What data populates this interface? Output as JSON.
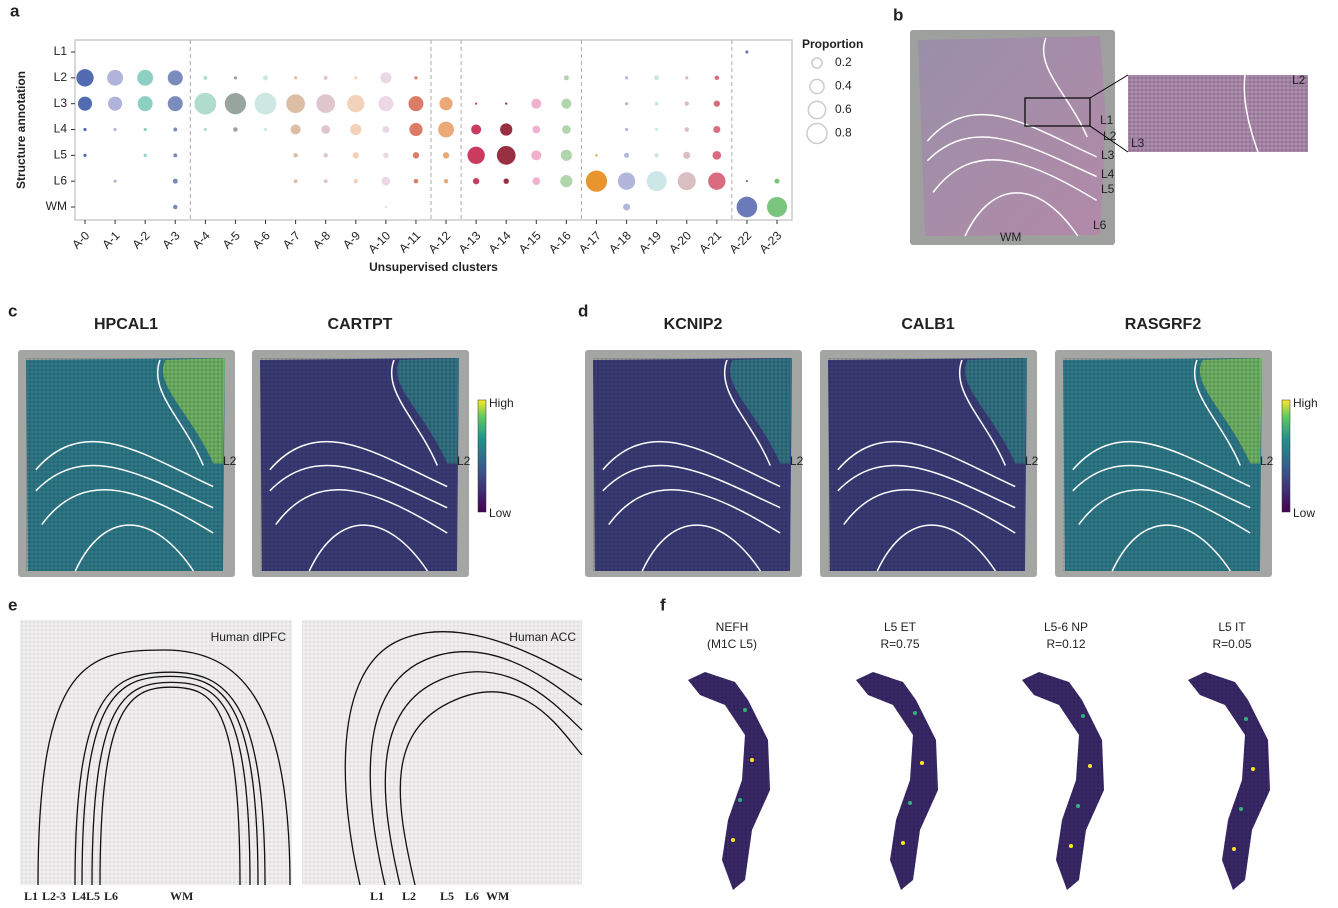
{
  "chart_data": {
    "type": "bubble",
    "x_label": "Unsupervised clusters",
    "y_label": "Structure annotation",
    "y_categories": [
      "L1",
      "L2",
      "L3",
      "L4",
      "L5",
      "L6",
      "WM"
    ],
    "dividers_after": [
      "A-3",
      "A-11",
      "A-12",
      "A-16",
      "A-21"
    ],
    "size_legend": {
      "title": "Proportion",
      "values": [
        0.2,
        0.4,
        0.6,
        0.8
      ]
    },
    "series": [
      {
        "name": "A-0",
        "color": "#3f5ba9",
        "values": [
          null,
          0.6,
          0.4,
          0.02,
          0.02,
          null,
          null
        ]
      },
      {
        "name": "A-1",
        "color": "#a7acd6",
        "values": [
          null,
          0.5,
          0.4,
          0.02,
          null,
          0.02,
          null
        ]
      },
      {
        "name": "A-2",
        "color": "#7fcbbd",
        "values": [
          null,
          0.5,
          0.45,
          0.02,
          0.02,
          null,
          null
        ]
      },
      {
        "name": "A-3",
        "color": "#6c7fb4",
        "values": [
          null,
          0.45,
          0.45,
          0.03,
          0.03,
          0.05,
          0.04
        ]
      },
      {
        "name": "A-4",
        "color": "#a7d8c8",
        "values": [
          null,
          0.03,
          0.95,
          0.02,
          null,
          null,
          null
        ]
      },
      {
        "name": "A-5",
        "color": "#8d9a93",
        "values": [
          null,
          0.02,
          0.9,
          0.04,
          null,
          null,
          null
        ]
      },
      {
        "name": "A-6",
        "color": "#c9e4e0",
        "values": [
          null,
          0.05,
          0.95,
          0.02,
          null,
          null,
          null
        ]
      },
      {
        "name": "A-7",
        "color": "#d8b79a",
        "values": [
          null,
          0.02,
          0.7,
          0.2,
          0.04,
          0.03,
          null
        ]
      },
      {
        "name": "A-8",
        "color": "#dcc0c8",
        "values": [
          null,
          0.03,
          0.7,
          0.15,
          0.04,
          0.03,
          null
        ]
      },
      {
        "name": "A-9",
        "color": "#f1cdb4",
        "values": [
          null,
          0.02,
          0.6,
          0.25,
          0.08,
          0.04,
          null
        ]
      },
      {
        "name": "A-10",
        "color": "#e9d3e2",
        "values": [
          null,
          0.25,
          0.45,
          0.1,
          0.06,
          0.15,
          0.01
        ]
      },
      {
        "name": "A-11",
        "color": "#d96e55",
        "values": [
          null,
          0.02,
          0.45,
          0.35,
          0.08,
          0.04,
          null
        ]
      },
      {
        "name": "A-12",
        "color": "#e8a068",
        "values": [
          null,
          null,
          0.35,
          0.5,
          0.08,
          0.04,
          null
        ]
      },
      {
        "name": "A-13",
        "color": "#c4264f",
        "values": [
          null,
          null,
          0.01,
          0.2,
          0.6,
          0.08,
          null
        ]
      },
      {
        "name": "A-14",
        "color": "#8e1a2e",
        "values": [
          null,
          null,
          0.01,
          0.3,
          0.7,
          0.06,
          null
        ]
      },
      {
        "name": "A-15",
        "color": "#f0a9c8",
        "values": [
          null,
          null,
          0.2,
          0.12,
          0.2,
          0.12,
          null
        ]
      },
      {
        "name": "A-16",
        "color": "#a8d1a4",
        "values": [
          null,
          0.05,
          0.2,
          0.15,
          0.25,
          0.3,
          null
        ]
      },
      {
        "name": "A-17",
        "color": "#e58a1a",
        "values": [
          null,
          null,
          null,
          null,
          0.01,
          0.9,
          null
        ]
      },
      {
        "name": "A-18",
        "color": "#a9aed6",
        "values": [
          null,
          0.02,
          0.02,
          0.02,
          0.05,
          0.6,
          0.1
        ]
      },
      {
        "name": "A-19",
        "color": "#c6e4e4",
        "values": [
          null,
          0.05,
          0.03,
          0.02,
          0.04,
          0.8,
          null
        ]
      },
      {
        "name": "A-20",
        "color": "#d6b7bb",
        "values": [
          null,
          0.02,
          0.04,
          0.04,
          0.1,
          0.65,
          null
        ]
      },
      {
        "name": "A-21",
        "color": "#d65c72",
        "values": [
          null,
          0.04,
          0.08,
          0.1,
          0.15,
          0.6,
          null
        ]
      },
      {
        "name": "A-22",
        "color": "#5b6db3",
        "values": [
          0.02,
          null,
          null,
          null,
          null,
          0.01,
          0.85
        ]
      },
      {
        "name": "A-23",
        "color": "#6bbf6f",
        "values": [
          null,
          null,
          null,
          null,
          null,
          0.05,
          0.8
        ]
      }
    ]
  },
  "figure": {
    "panel_labels": [
      "a",
      "b",
      "c",
      "d",
      "e",
      "f"
    ],
    "b": {
      "layers": [
        "L1",
        "L2",
        "L3",
        "L4",
        "L5",
        "L6",
        "WM"
      ],
      "inset": [
        "L2",
        "L3"
      ]
    },
    "c": {
      "titles": [
        "HPCAL1",
        "CARTPT"
      ],
      "high": "High",
      "low": "Low",
      "mark": "L2"
    },
    "d": {
      "titles": [
        "KCNIP2",
        "CALB1",
        "RASGRF2"
      ],
      "high": "High",
      "low": "Low",
      "mark": "L2"
    },
    "e": {
      "titles": [
        "Human dlPFC",
        "Human ACC"
      ],
      "left_layers": [
        "L1",
        "L2-3",
        "L4",
        "L5",
        "L6",
        "WM"
      ],
      "right_layers": [
        "L1",
        "L2",
        "L5",
        "L6",
        "WM"
      ]
    },
    "f": {
      "titles": [
        [
          "NEFH",
          "(M1C L5)"
        ],
        [
          "L5 ET",
          "R=0.75"
        ],
        [
          "L5-6 NP",
          "R=0.12"
        ],
        [
          "L5 IT",
          "R=0.05"
        ]
      ]
    }
  }
}
